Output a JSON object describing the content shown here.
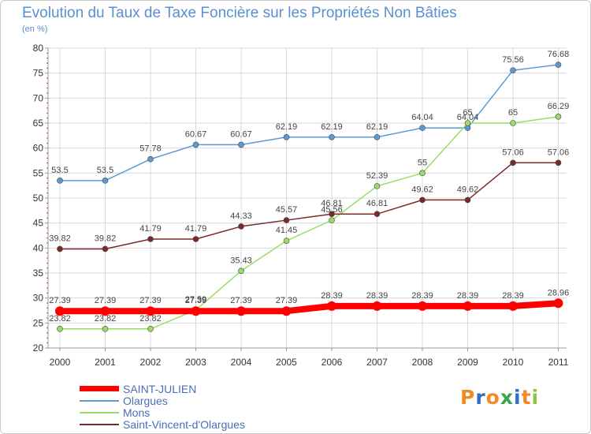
{
  "header": {
    "title": "Evolution du Taux de Taxe Foncière sur les Propriétés Non Bâties",
    "unit": "(en %)"
  },
  "logo": {
    "text": "Proxiti",
    "colors": [
      "#f08a24",
      "#2f6fc4",
      "#f08a24",
      "#3aa44a",
      "#2f6fc4",
      "#f08a24",
      "#8fc43a"
    ]
  },
  "chart_data": {
    "type": "line",
    "categories": [
      "2000",
      "2001",
      "2002",
      "2003",
      "2004",
      "2005",
      "2006",
      "2007",
      "2008",
      "2009",
      "2010",
      "2011"
    ],
    "ylim": [
      20,
      80
    ],
    "yticks": [
      "20",
      "25",
      "30",
      "35",
      "40",
      "45",
      "50",
      "55",
      "60",
      "65",
      "70",
      "75",
      "80"
    ],
    "grid": true,
    "legend_position": "bottom-left",
    "series": [
      {
        "name": "SAINT-JULIEN",
        "color": "#ff0000",
        "values": [
          27.39,
          27.39,
          27.39,
          27.39,
          27.39,
          27.39,
          28.39,
          28.39,
          28.39,
          28.39,
          28.39,
          28.96
        ],
        "labels": [
          "27.39",
          "27.39",
          "27.39",
          "27.39",
          "27.39",
          "27.39",
          "28.39",
          "28.39",
          "28.39",
          "28.39",
          "28.39",
          "28.96"
        ]
      },
      {
        "name": "Olargues",
        "color": "#5b9bd5",
        "values": [
          53.5,
          53.5,
          57.78,
          60.67,
          60.67,
          62.19,
          62.19,
          62.19,
          64.04,
          64.04,
          75.56,
          76.68
        ],
        "labels": [
          "53.5",
          "53.5",
          "57.78",
          "60.67",
          "60.67",
          "62.19",
          "62.19",
          "62.19",
          "64.04",
          "64.04",
          "75.56",
          "76.68"
        ]
      },
      {
        "name": "Mons",
        "color": "#99dd66",
        "values": [
          23.82,
          23.82,
          23.82,
          27.59,
          35.43,
          41.45,
          45.56,
          52.39,
          55,
          65,
          65,
          66.29
        ],
        "labels": [
          "23.82",
          "23.82",
          "23.82",
          "27.59",
          "35.43",
          "41.45",
          "45.56",
          "52.39",
          "55",
          "65",
          "65",
          "66.29"
        ]
      },
      {
        "name": "Saint-Vincent-d'Olargues",
        "color": "#7a2a2a",
        "values": [
          39.82,
          39.82,
          41.79,
          41.79,
          44.33,
          45.57,
          46.81,
          46.81,
          49.62,
          49.62,
          57.06,
          57.06
        ],
        "labels": [
          "39.82",
          "39.82",
          "41.79",
          "41.79",
          "44.33",
          "45.57",
          "46.81",
          "46.81",
          "49.62",
          "49.62",
          "57.06",
          "57.06"
        ]
      }
    ]
  }
}
